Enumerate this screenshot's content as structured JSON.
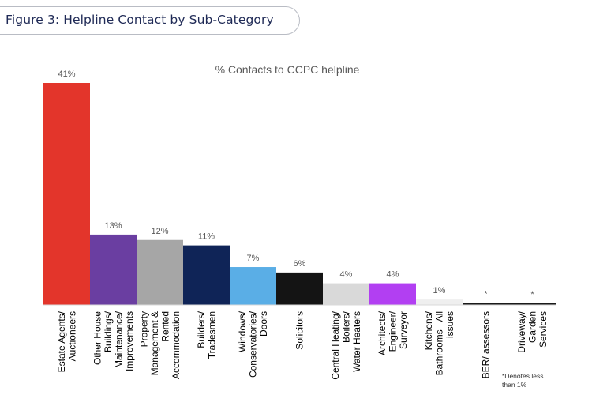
{
  "header": {
    "figure_title": "Figure 3: Helpline Contact by Sub-Category"
  },
  "footnote": "*Denotes less than 1%",
  "chart_data": {
    "type": "bar",
    "title": "% Contacts to CCPC helpline",
    "categories": [
      [
        "Estate Agents/",
        "Auctioneers"
      ],
      [
        "Other House",
        "Buildings/",
        "Maintenance/",
        "Improvements"
      ],
      [
        "Property",
        "Management &",
        "Rented",
        "Accommodation"
      ],
      [
        "Builders/",
        "Tradesmen"
      ],
      [
        "Windows/",
        "Conservatories/",
        "Doors"
      ],
      [
        "Solicitors"
      ],
      [
        "Central Heating/",
        "Boilers/",
        "Water Heaters"
      ],
      [
        "Architects/",
        "Engineer/",
        "Surveyor"
      ],
      [
        "Kitchens/",
        "Bathrooms - All",
        "issues"
      ],
      [
        "BER/ assessors"
      ],
      [
        "Driveway/",
        "Garden",
        "Services"
      ]
    ],
    "values": [
      41,
      13,
      12,
      11,
      7,
      6,
      4,
      4,
      1,
      0.4,
      0.3
    ],
    "data_labels": [
      "41%",
      "13%",
      "12%",
      "11%",
      "7%",
      "6%",
      "4%",
      "4%",
      "1%",
      "*",
      "*"
    ],
    "colors": [
      "#e3352b",
      "#6a3ea1",
      "#a6a6a6",
      "#0f2457",
      "#5aaee6",
      "#141414",
      "#d9d9d9",
      "#b23ff2",
      "#efefef",
      "#1a1a1a",
      "#1a1a1a"
    ],
    "ylim": [
      0,
      41
    ],
    "grid": false,
    "legend": "none"
  }
}
